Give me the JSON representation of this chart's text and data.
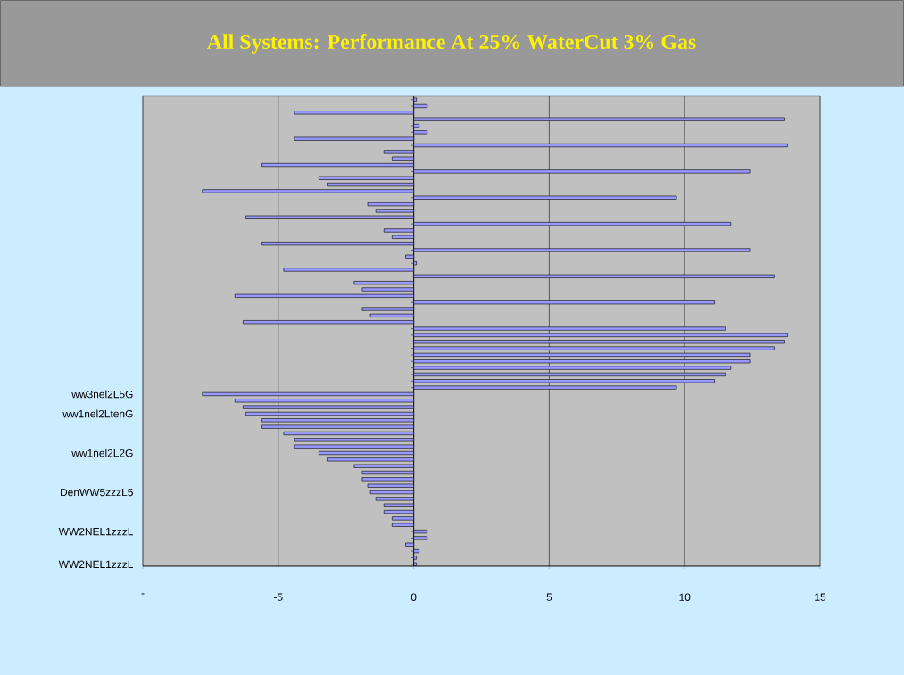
{
  "chart_data": {
    "type": "bar",
    "orientation": "horizontal",
    "title": "All Systems: Performance At 25% WaterCut 3% Gas",
    "categories": [
      null,
      null,
      null,
      null,
      null,
      null,
      null,
      null,
      null,
      null,
      null,
      null,
      null,
      null,
      null,
      null,
      null,
      null,
      null,
      null,
      null,
      null,
      null,
      null,
      null,
      null,
      null,
      null,
      null,
      null,
      null,
      null,
      null,
      null,
      null,
      null,
      null,
      null,
      null,
      null,
      null,
      null,
      null,
      null,
      null,
      "ww3nel2L5G",
      null,
      null,
      "ww1nel2LtenG",
      null,
      null,
      null,
      null,
      null,
      "ww1nel2L2G",
      null,
      null,
      null,
      null,
      null,
      "DenWW5zzzL5",
      null,
      null,
      null,
      null,
      null,
      "WW2NEL1zzzL",
      null,
      null,
      null,
      null,
      "WW2NEL1zzzL"
    ],
    "values": [
      0.1,
      0.5,
      -4.4,
      13.7,
      0.2,
      0.5,
      -4.4,
      13.8,
      -1.1,
      -0.8,
      -5.6,
      12.4,
      -3.5,
      -3.2,
      -7.8,
      9.7,
      -1.7,
      -1.4,
      -6.2,
      11.7,
      -1.1,
      -0.8,
      -5.6,
      12.4,
      -0.3,
      0.1,
      -4.8,
      13.3,
      -2.2,
      -1.9,
      -6.6,
      11.1,
      -1.9,
      -1.6,
      -6.3,
      11.5,
      13.8,
      13.7,
      13.3,
      12.4,
      12.4,
      11.7,
      11.5,
      11.1,
      9.7,
      -7.8,
      -6.6,
      -6.3,
      -6.2,
      -5.6,
      -5.6,
      -4.8,
      -4.4,
      -4.4,
      -3.5,
      -3.2,
      -2.2,
      -1.9,
      -1.9,
      -1.7,
      -1.6,
      -1.4,
      -1.1,
      -1.1,
      -0.8,
      -0.8,
      0.5,
      0.5,
      -0.3,
      0.2,
      0.1,
      0.1
    ],
    "color": "#9999ff",
    "xlim": [
      -10,
      15
    ],
    "xticks": [
      {
        "value": -10,
        "label": "-"
      },
      -5,
      0,
      5,
      10,
      15
    ],
    "grid": "x"
  }
}
